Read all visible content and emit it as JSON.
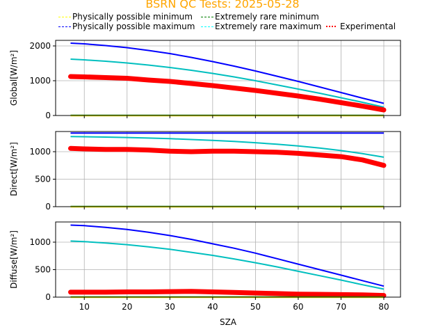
{
  "chart_data": {
    "type": "line",
    "title": "BSRN QC Tests: 2025-05-28",
    "title_color": "#ffa500",
    "xlabel": "SZA",
    "xlim": [
      3.3,
      83.9
    ],
    "xticks": [
      10,
      20,
      30,
      40,
      50,
      60,
      70,
      80
    ],
    "grid": true,
    "legend": {
      "placement": "top",
      "entries": [
        {
          "label": "Physically possible minimum",
          "color": "#ffff00",
          "style": "dashed"
        },
        {
          "label": "Extremely rare minimum",
          "color": "#008000",
          "style": "dashed"
        },
        {
          "label": "Physically possible maximum",
          "color": "#0000ff",
          "style": "dashed"
        },
        {
          "label": "Extremely rare maximum",
          "color": "#00ffff",
          "style": "dashed"
        },
        {
          "label": "Experimental",
          "color": "#ff0000",
          "style": "dotted"
        }
      ]
    },
    "sza": [
      6.8,
      10,
      15,
      20,
      25,
      30,
      35,
      40,
      45,
      50,
      55,
      60,
      65,
      70,
      75,
      80
    ],
    "panels": [
      {
        "name": "global",
        "ylabel": "Global[W/m²]",
        "ylim": [
          0,
          2160
        ],
        "yticks": [
          0,
          1000,
          2000
        ],
        "series": [
          {
            "name": "Physically possible maximum",
            "color": "#0000ff",
            "values": [
              2080,
              2060,
              2010,
              1950,
              1870,
              1780,
              1670,
              1550,
              1420,
              1280,
              1130,
              980,
              820,
              660,
              500,
              350
            ]
          },
          {
            "name": "Extremely rare maximum",
            "color": "#00bfbf",
            "values": [
              1620,
              1600,
              1560,
              1510,
              1450,
              1380,
              1300,
              1210,
              1110,
              1000,
              880,
              760,
              640,
              510,
              380,
              240
            ]
          },
          {
            "name": "Experimental",
            "color": "#ff0000",
            "values": [
              1120,
              1110,
              1090,
              1070,
              1020,
              980,
              920,
              860,
              790,
              720,
              640,
              560,
              470,
              370,
              270,
              160
            ]
          },
          {
            "name": "Extremely rare minimum",
            "color": "#008000",
            "values": [
              3,
              3,
              3,
              3,
              3,
              3,
              3,
              3,
              3,
              3,
              3,
              3,
              3,
              3,
              3,
              3
            ]
          },
          {
            "name": "Physically possible minimum",
            "color": "#ffff00",
            "values": [
              -4,
              -4,
              -4,
              -4,
              -4,
              -4,
              -4,
              -4,
              -4,
              -4,
              -4,
              -4,
              -4,
              -4,
              -4,
              -4
            ]
          }
        ]
      },
      {
        "name": "direct",
        "ylabel": "Direct[W/m²]",
        "ylim": [
          0,
          1367
        ],
        "yticks": [
          0,
          500,
          1000
        ],
        "series": [
          {
            "name": "Physically possible maximum",
            "color": "#0000ff",
            "values": [
              1338,
              1338,
              1338,
              1338,
              1338,
              1338,
              1338,
              1338,
              1338,
              1338,
              1338,
              1338,
              1338,
              1338,
              1338,
              1338
            ]
          },
          {
            "name": "Extremely rare maximum",
            "color": "#00bfbf",
            "values": [
              1275,
              1272,
              1266,
              1258,
              1248,
              1236,
              1222,
              1205,
              1186,
              1163,
              1136,
              1104,
              1066,
              1020,
              965,
              900
            ]
          },
          {
            "name": "Experimental",
            "color": "#ff0000",
            "values": [
              1060,
              1050,
              1040,
              1040,
              1030,
              1010,
              1000,
              1010,
              1010,
              1000,
              990,
              970,
              940,
              910,
              850,
              750
            ]
          },
          {
            "name": "Extremely rare minimum",
            "color": "#008000",
            "values": [
              3,
              3,
              3,
              3,
              3,
              3,
              3,
              3,
              3,
              3,
              3,
              3,
              3,
              3,
              3,
              3
            ]
          },
          {
            "name": "Physically possible minimum",
            "color": "#ffff00",
            "values": [
              -4,
              -4,
              -4,
              -4,
              -4,
              -4,
              -4,
              -4,
              -4,
              -4,
              -4,
              -4,
              -4,
              -4,
              -4,
              -4
            ]
          }
        ]
      },
      {
        "name": "diffuse",
        "ylabel": "Diffuse[W/m²]",
        "ylim": [
          0,
          1367
        ],
        "yticks": [
          0,
          500,
          1000
        ],
        "series": [
          {
            "name": "Physically possible maximum",
            "color": "#0000ff",
            "values": [
              1310,
              1300,
              1270,
              1230,
              1180,
              1120,
              1050,
              970,
              890,
              800,
              700,
              600,
              500,
              400,
              300,
              200
            ]
          },
          {
            "name": "Extremely rare maximum",
            "color": "#00bfbf",
            "values": [
              1020,
              1010,
              985,
              955,
              915,
              870,
              815,
              760,
              695,
              625,
              550,
              470,
              390,
              310,
              225,
              145
            ]
          },
          {
            "name": "Experimental",
            "color": "#ff0000",
            "values": [
              90,
              90,
              90,
              95,
              95,
              100,
              105,
              95,
              85,
              75,
              65,
              55,
              50,
              45,
              40,
              30
            ]
          },
          {
            "name": "Extremely rare minimum",
            "color": "#008000",
            "values": [
              3,
              3,
              3,
              3,
              3,
              3,
              3,
              3,
              3,
              3,
              3,
              3,
              3,
              3,
              3,
              3
            ]
          },
          {
            "name": "Physically possible minimum",
            "color": "#ffff00",
            "values": [
              -4,
              -4,
              -4,
              -4,
              -4,
              -4,
              -4,
              -4,
              -4,
              -4,
              -4,
              -4,
              -4,
              -4,
              -4,
              -4
            ]
          }
        ]
      }
    ]
  }
}
